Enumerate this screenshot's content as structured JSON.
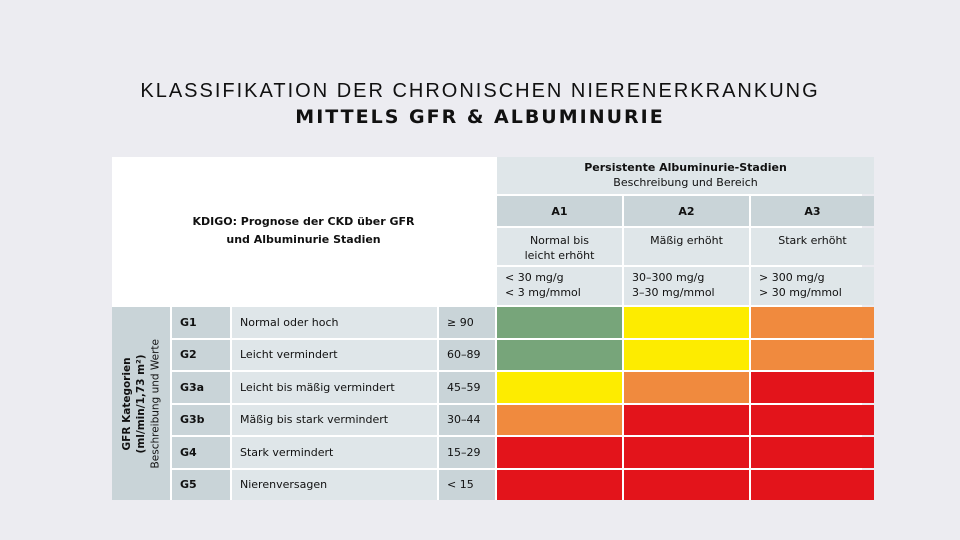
{
  "title": {
    "line1": "KLASSIFIKATION DER CHRONISCHEN NIERENERKRANKUNG",
    "line2": "MITTELS GFR & ALBUMINURIE"
  },
  "kdigo": {
    "line1": "KDIGO: Prognose der CKD über GFR",
    "line2": "und Albuminurie Stadien"
  },
  "albuminuria": {
    "title": "Persistente Albuminurie-Stadien",
    "subtitle": "Beschreibung und Bereich",
    "stages": [
      {
        "code": "A1",
        "desc": "Normal bis leicht erhöht",
        "range1": "< 30 mg/g",
        "range2": "< 3 mg/mmol"
      },
      {
        "code": "A2",
        "desc": "Mäßig erhöht",
        "range1": "30–300 mg/g",
        "range2": "3–30 mg/mmol"
      },
      {
        "code": "A3",
        "desc": "Stark erhöht",
        "range1": "> 300 mg/g",
        "range2": "> 30 mg/mmol"
      }
    ]
  },
  "gfr_label": {
    "line1": "GFR Kategorien",
    "line2": "(ml/min/1,73 m²)",
    "line3": "Beschreibung und Werte"
  },
  "colors": {
    "low": "#77a57a",
    "moderate": "#fdec00",
    "high": "#f08a3e",
    "very_high": "#e3141b"
  },
  "rows": [
    {
      "code": "G1",
      "desc": "Normal oder hoch",
      "value": "≥ 90",
      "risk": [
        "low",
        "moderate",
        "high"
      ]
    },
    {
      "code": "G2",
      "desc": "Leicht vermindert",
      "value": "60–89",
      "risk": [
        "low",
        "moderate",
        "high"
      ]
    },
    {
      "code": "G3a",
      "desc": "Leicht bis mäßig vermindert",
      "value": "45–59",
      "risk": [
        "moderate",
        "high",
        "very_high"
      ]
    },
    {
      "code": "G3b",
      "desc": "Mäßig bis stark vermindert",
      "value": "30–44",
      "risk": [
        "high",
        "very_high",
        "very_high"
      ]
    },
    {
      "code": "G4",
      "desc": "Stark vermindert",
      "value": "15–29",
      "risk": [
        "very_high",
        "very_high",
        "very_high"
      ]
    },
    {
      "code": "G5",
      "desc": "Nierenversagen",
      "value": "< 15",
      "risk": [
        "very_high",
        "very_high",
        "very_high"
      ]
    }
  ]
}
